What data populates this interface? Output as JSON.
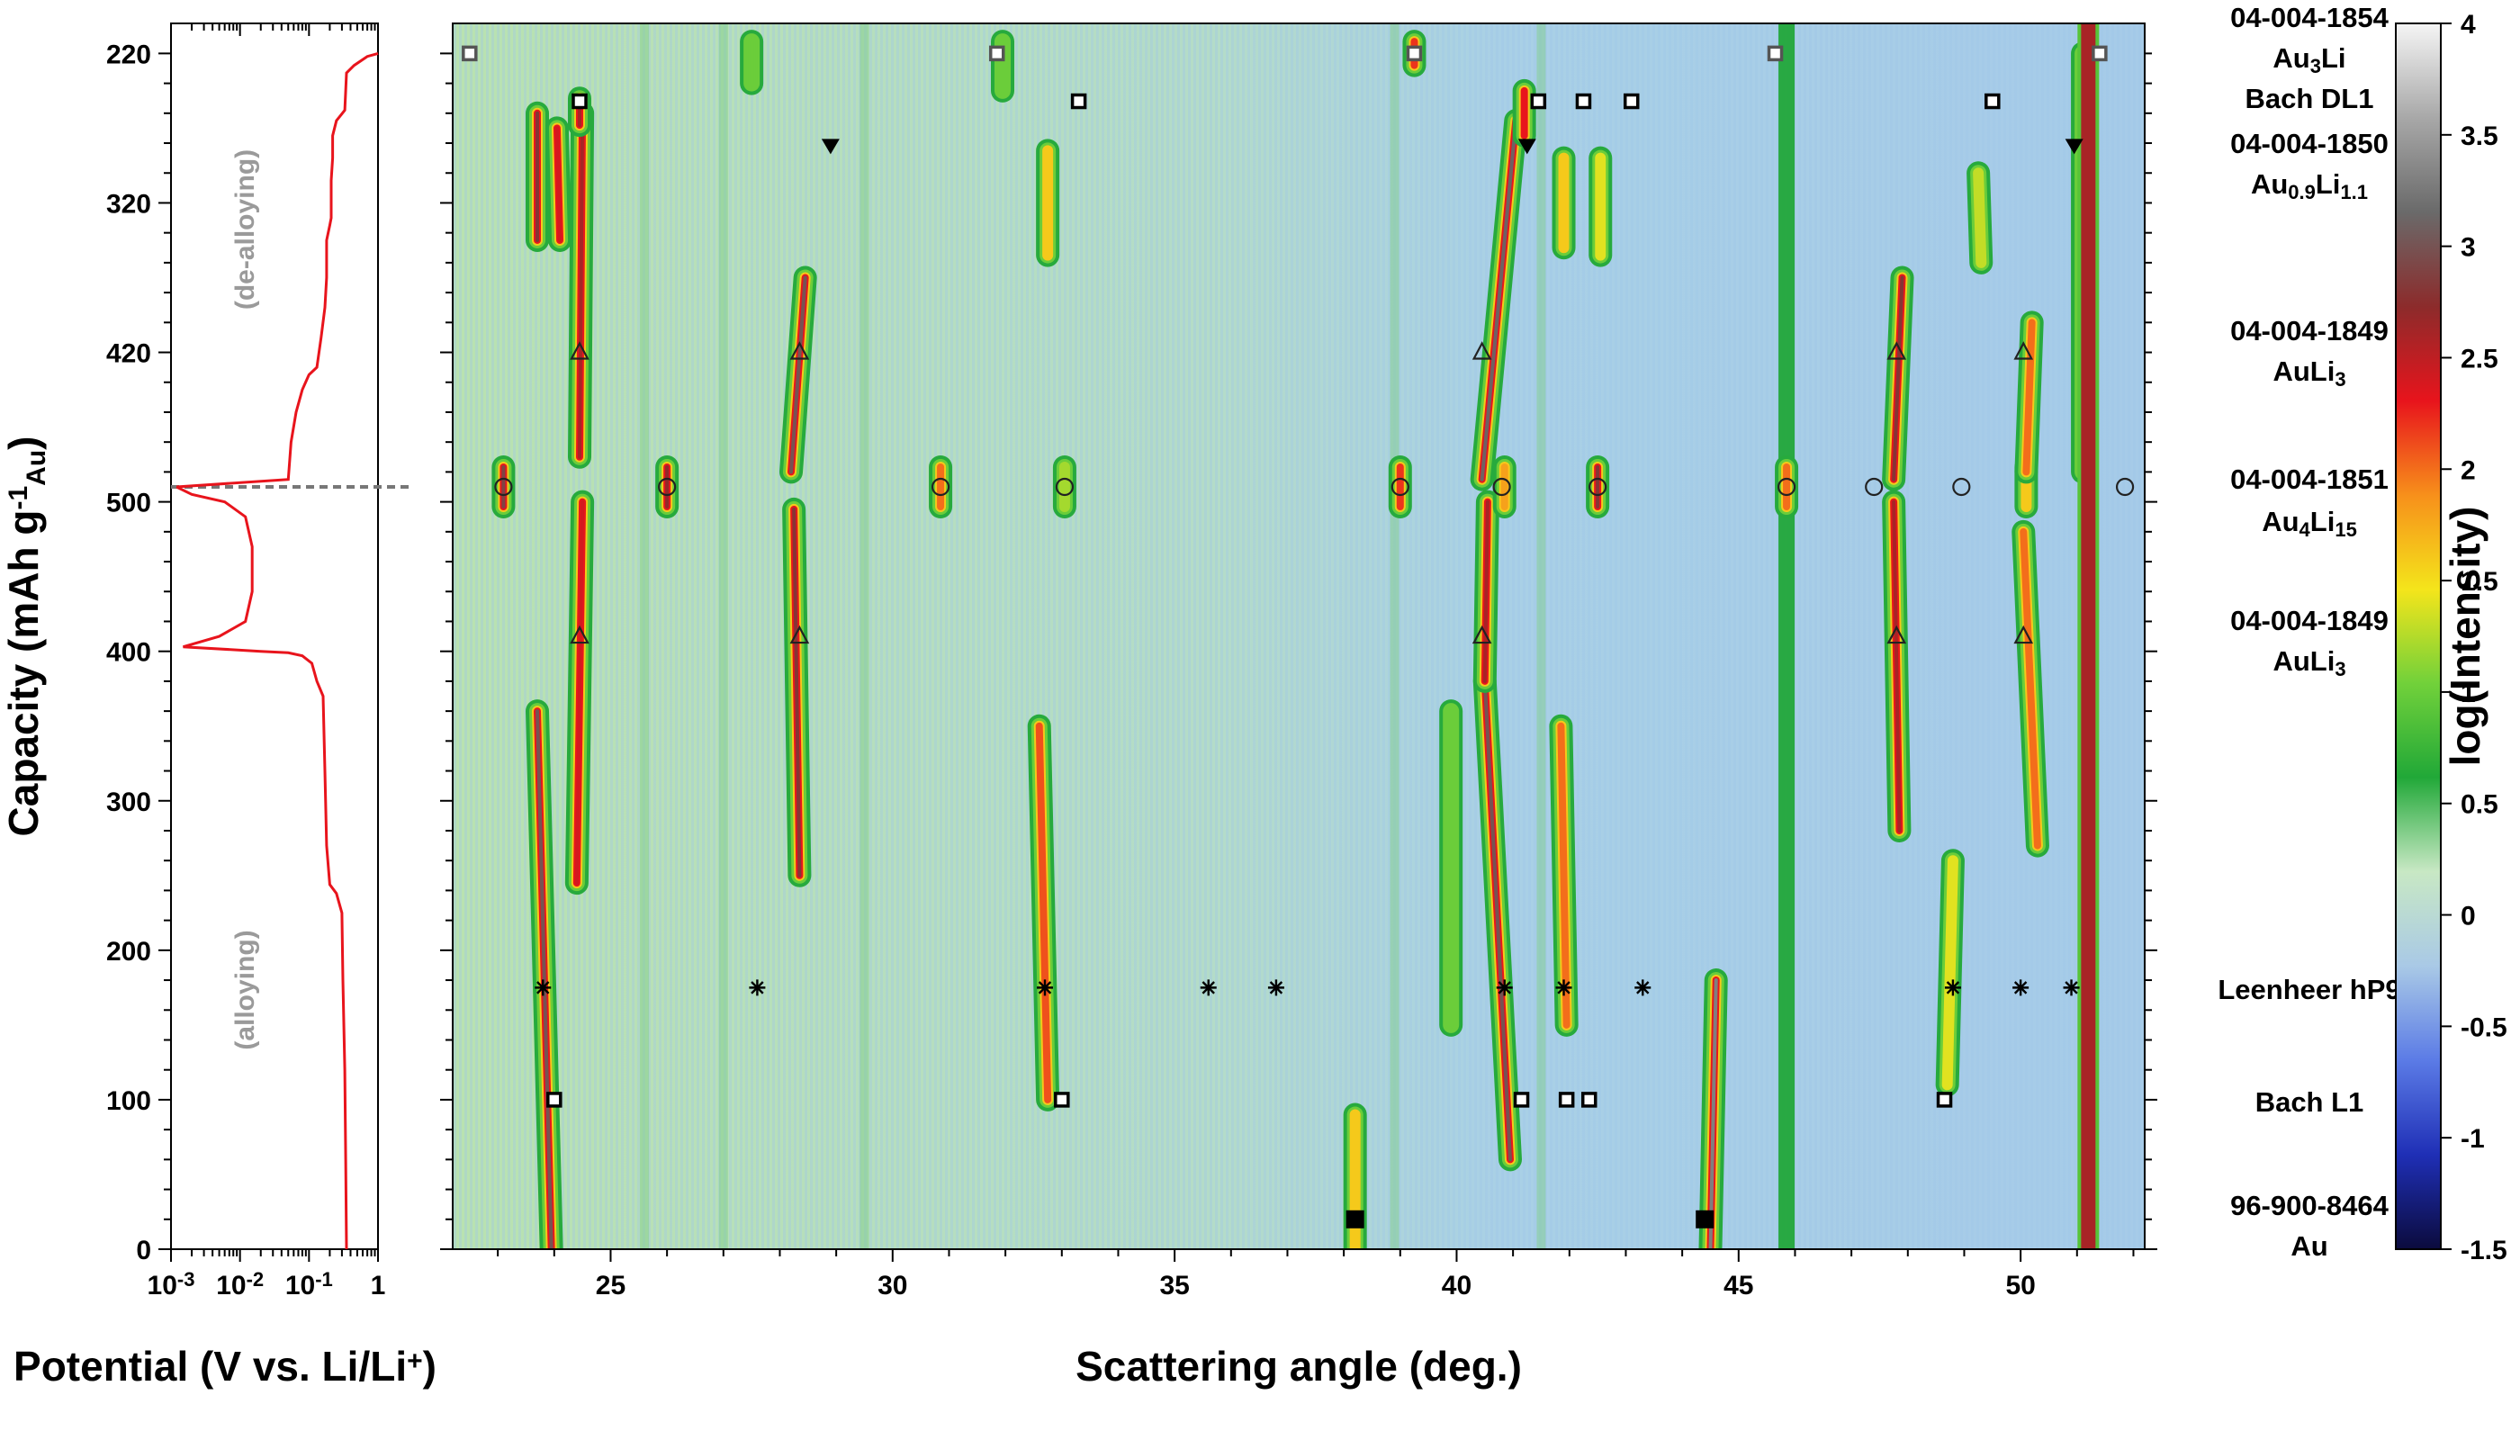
{
  "chart_data": [
    {
      "type": "line",
      "panel": "potential-capacity",
      "xlabel": "Potential (V vs. Li/Li",
      "xlabel_sup": "+",
      "xlabel_tail": ")",
      "ylabel": "Capacity (mAh g",
      "ylabel_sup": "-1",
      "ylabel_sub": "Au",
      "ylabel_tail": ")",
      "x_scale": "log",
      "xlim": [
        0.001,
        1
      ],
      "x_ticks": [
        {
          "value": 0.001,
          "base": "10",
          "exp": "-3"
        },
        {
          "value": 0.01,
          "base": "10",
          "exp": "-2"
        },
        {
          "value": 0.1,
          "base": "10",
          "exp": "-1"
        },
        {
          "value": 1,
          "base": "1",
          "exp": "0"
        }
      ],
      "y_ticks": [
        {
          "label": "0",
          "capacity": 0,
          "branch": "alloying"
        },
        {
          "label": "100",
          "capacity": 100,
          "branch": "alloying"
        },
        {
          "label": "200",
          "capacity": 200,
          "branch": "alloying"
        },
        {
          "label": "300",
          "capacity": 300,
          "branch": "alloying"
        },
        {
          "label": "400",
          "capacity": 400,
          "branch": "alloying"
        },
        {
          "label": "500",
          "capacity": 500,
          "branch": "alloying"
        },
        {
          "label": "420",
          "capacity": 420,
          "branch": "de-alloying"
        },
        {
          "label": "320",
          "capacity": 320,
          "branch": "de-alloying"
        },
        {
          "label": "220",
          "capacity": 220,
          "branch": "de-alloying"
        }
      ],
      "turning_point_capacity": 510,
      "region_labels": [
        "(alloying)",
        "(de-alloying)"
      ],
      "line_color": "#e8141c",
      "series": [
        {
          "branch": "alloying",
          "points": [
            [
              0.35,
              0
            ],
            [
              0.34,
              60
            ],
            [
              0.33,
              120
            ],
            [
              0.31,
              180
            ],
            [
              0.3,
              225
            ],
            [
              0.25,
              238
            ],
            [
              0.2,
              244
            ],
            [
              0.18,
              270
            ],
            [
              0.17,
              320
            ],
            [
              0.16,
              370
            ],
            [
              0.13,
              380
            ],
            [
              0.11,
              392
            ],
            [
              0.08,
              397
            ],
            [
              0.05,
              399
            ],
            [
              0.02,
              400
            ],
            [
              0.0015,
              403
            ],
            [
              0.005,
              410
            ],
            [
              0.012,
              420
            ],
            [
              0.015,
              440
            ],
            [
              0.015,
              470
            ],
            [
              0.012,
              490
            ],
            [
              0.006,
              500
            ],
            [
              0.002,
              505
            ],
            [
              0.0012,
              510
            ]
          ]
        },
        {
          "branch": "de-alloying",
          "points": [
            [
              0.0012,
              510
            ],
            [
              0.05,
              505
            ],
            [
              0.055,
              480
            ],
            [
              0.065,
              460
            ],
            [
              0.08,
              445
            ],
            [
              0.1,
              435
            ],
            [
              0.13,
              430
            ],
            [
              0.15,
              410
            ],
            [
              0.17,
              390
            ],
            [
              0.18,
              370
            ],
            [
              0.18,
              345
            ],
            [
              0.2,
              335
            ],
            [
              0.21,
              330
            ],
            [
              0.21,
              305
            ],
            [
              0.22,
              290
            ],
            [
              0.22,
              275
            ],
            [
              0.25,
              265
            ],
            [
              0.33,
              258
            ],
            [
              0.34,
              245
            ],
            [
              0.35,
              233
            ],
            [
              0.45,
              228
            ],
            [
              0.7,
              222
            ],
            [
              1.0,
              220
            ]
          ]
        }
      ]
    },
    {
      "type": "heatmap",
      "panel": "diffraction-map",
      "xlabel": "Scattering angle (deg.)",
      "xlim": [
        22.2,
        52.2
      ],
      "x_ticks": [
        25,
        30,
        35,
        40,
        45,
        50
      ],
      "colorbar": {
        "label": "log(Intensity)",
        "range": [
          -1.5,
          4
        ],
        "ticks": [
          "4",
          "3.5",
          "3",
          "2.5",
          "2",
          "1.5",
          "1",
          "0.5",
          "0",
          "-0.5",
          "-1",
          "-1.5"
        ],
        "colors": [
          "#0b0b3d",
          "#1f2fb6",
          "#5b7be6",
          "#a9c9e6",
          "#c8e8c4",
          "#21a838",
          "#72d13a",
          "#f4e51b",
          "#f7901b",
          "#e8141c",
          "#8c2b2b",
          "#6a6a6a",
          "#a8a8a8",
          "#f5f5f5"
        ]
      },
      "background_value": 0,
      "background_band_angle": 45.85,
      "phases": [
        {
          "label": "04-004-1854",
          "formula": [
            [
              "Au"
            ],
            [
              "3",
              "sub"
            ],
            [
              "Li"
            ]
          ],
          "capacity": 220,
          "branch": "de-alloying",
          "marker": "open-square-gray",
          "angles": [
            22.5,
            31.85,
            39.25,
            45.65,
            51.4
          ]
        },
        {
          "label": "Bach DL1",
          "formula": [],
          "capacity": 252,
          "branch": "de-alloying",
          "marker": "open-square",
          "angles": [
            24.45,
            33.3,
            41.45,
            42.25,
            43.1,
            49.5
          ]
        },
        {
          "label": "04-004-1850",
          "formula": [
            [
              "Au"
            ],
            [
              "0.9",
              "sub"
            ],
            [
              "Li"
            ],
            [
              "1.1",
              "sub"
            ]
          ],
          "capacity": 282,
          "branch": "de-alloying",
          "marker": "filled-down-triangle",
          "angles": [
            28.9,
            41.25,
            50.95
          ]
        },
        {
          "label": "04-004-1849",
          "formula": [
            [
              "AuLi"
            ],
            [
              "3",
              "sub"
            ]
          ],
          "capacity": 420,
          "branch": "de-alloying",
          "marker": "open-triangle",
          "angles": [
            24.45,
            28.35,
            40.45,
            47.8,
            50.05
          ]
        },
        {
          "label": "04-004-1851",
          "formula": [
            [
              "Au"
            ],
            [
              "4",
              "sub"
            ],
            [
              "Li"
            ],
            [
              "15",
              "sub"
            ]
          ],
          "capacity": 510,
          "branch": "turn",
          "marker": "open-circle",
          "angles": [
            23.1,
            26.0,
            30.85,
            33.05,
            39.0,
            40.8,
            42.5,
            45.85,
            47.4,
            48.95,
            51.85
          ]
        },
        {
          "label": "04-004-1849",
          "formula": [
            [
              "AuLi"
            ],
            [
              "3",
              "sub"
            ]
          ],
          "capacity": 410,
          "branch": "alloying",
          "marker": "open-triangle",
          "angles": [
            24.45,
            28.35,
            40.45,
            47.8,
            50.05
          ]
        },
        {
          "label": "Leenheer hP9",
          "formula": [],
          "capacity": 175,
          "branch": "alloying",
          "marker": "asterisk",
          "angles": [
            23.8,
            27.6,
            32.7,
            35.6,
            36.8,
            40.85,
            41.9,
            43.3,
            48.8,
            50.0,
            50.9
          ]
        },
        {
          "label": "Bach L1",
          "formula": [],
          "capacity": 100,
          "branch": "alloying",
          "marker": "open-square",
          "angles": [
            24.0,
            33.0,
            41.15,
            41.95,
            42.35,
            48.65
          ]
        },
        {
          "label": "96-900-8464",
          "formula": [
            [
              "Au"
            ]
          ],
          "capacity": 20,
          "branch": "alloying",
          "marker": "filled-square",
          "angles": [
            38.2,
            44.4
          ]
        }
      ],
      "traces": [
        {
          "branch": "alloying",
          "c0": 0,
          "c1": 360,
          "a0": 23.95,
          "a1": 23.7,
          "peak": 3.0
        },
        {
          "branch": "alloying",
          "c0": 245,
          "c1": 500,
          "a0": 24.4,
          "a1": 24.5,
          "peak": 2.4
        },
        {
          "branch": "alloying",
          "c0": 250,
          "c1": 495,
          "a0": 28.35,
          "a1": 28.25,
          "peak": 2.8
        },
        {
          "branch": "alloying",
          "c0": 100,
          "c1": 350,
          "a0": 32.75,
          "a1": 32.6,
          "peak": 2.1
        },
        {
          "branch": "alloying",
          "c0": 0,
          "c1": 90,
          "a0": 38.2,
          "a1": 38.2,
          "peak": 1.6
        },
        {
          "branch": "alloying",
          "c0": 0,
          "c1": 180,
          "a0": 44.5,
          "a1": 44.6,
          "peak": 3.3
        },
        {
          "branch": "alloying",
          "c0": 60,
          "c1": 380,
          "a0": 40.95,
          "a1": 40.5,
          "peak": 3.0
        },
        {
          "branch": "alloying",
          "c0": 380,
          "c1": 500,
          "a0": 40.5,
          "a1": 40.55,
          "peak": 2.6
        },
        {
          "branch": "alloying",
          "c0": 150,
          "c1": 350,
          "a0": 41.95,
          "a1": 41.85,
          "peak": 2.0
        },
        {
          "branch": "alloying",
          "c0": 110,
          "c1": 260,
          "a0": 48.7,
          "a1": 48.8,
          "peak": 1.4
        },
        {
          "branch": "alloying",
          "c0": 280,
          "c1": 500,
          "a0": 47.85,
          "a1": 47.75,
          "peak": 2.6
        },
        {
          "branch": "alloying",
          "c0": 270,
          "c1": 480,
          "a0": 50.3,
          "a1": 50.05,
          "peak": 2.0
        },
        {
          "branch": "alloying",
          "c0": 150,
          "c1": 360,
          "a0": 39.9,
          "a1": 39.9,
          "peak": 1.0
        },
        {
          "branch": "turn",
          "c0": 497,
          "c1": 524,
          "a0": 23.1,
          "a1": 23.1,
          "peak": 2.9
        },
        {
          "branch": "turn",
          "c0": 497,
          "c1": 524,
          "a0": 26.0,
          "a1": 26.0,
          "peak": 2.7
        },
        {
          "branch": "turn",
          "c0": 497,
          "c1": 524,
          "a0": 30.85,
          "a1": 30.85,
          "peak": 2.0
        },
        {
          "branch": "turn",
          "c0": 497,
          "c1": 524,
          "a0": 33.05,
          "a1": 33.05,
          "peak": 1.2
        },
        {
          "branch": "turn",
          "c0": 497,
          "c1": 524,
          "a0": 39.0,
          "a1": 39.0,
          "peak": 2.2
        },
        {
          "branch": "turn",
          "c0": 497,
          "c1": 524,
          "a0": 40.85,
          "a1": 40.85,
          "peak": 1.8
        },
        {
          "branch": "turn",
          "c0": 497,
          "c1": 524,
          "a0": 42.5,
          "a1": 42.5,
          "peak": 2.8
        },
        {
          "branch": "turn",
          "c0": 497,
          "c1": 524,
          "a0": 45.85,
          "a1": 45.85,
          "peak": 2.0
        },
        {
          "branch": "turn",
          "c0": 497,
          "c1": 524,
          "a0": 50.1,
          "a1": 50.1,
          "peak": 1.6
        },
        {
          "branch": "de-alloying",
          "c0": 260,
          "c1": 490,
          "a0": 24.5,
          "a1": 24.45,
          "peak": 2.6
        },
        {
          "branch": "de-alloying",
          "c0": 260,
          "c1": 345,
          "a0": 23.7,
          "a1": 23.7,
          "peak": 2.8
        },
        {
          "branch": "de-alloying",
          "c0": 270,
          "c1": 345,
          "a0": 24.05,
          "a1": 24.1,
          "peak": 2.4
        },
        {
          "branch": "de-alloying",
          "c0": 370,
          "c1": 500,
          "a0": 28.45,
          "a1": 28.2,
          "peak": 3.0
        },
        {
          "branch": "de-alloying",
          "c0": 285,
          "c1": 355,
          "a0": 32.75,
          "a1": 32.75,
          "peak": 1.6
        },
        {
          "branch": "de-alloying",
          "c0": 265,
          "c1": 505,
          "a0": 41.05,
          "a1": 40.45,
          "peak": 3.1
        },
        {
          "branch": "de-alloying",
          "c0": 290,
          "c1": 350,
          "a0": 41.9,
          "a1": 41.9,
          "peak": 1.6
        },
        {
          "branch": "de-alloying",
          "c0": 290,
          "c1": 355,
          "a0": 42.55,
          "a1": 42.55,
          "peak": 1.4
        },
        {
          "branch": "de-alloying",
          "c0": 370,
          "c1": 505,
          "a0": 47.9,
          "a1": 47.75,
          "peak": 2.8
        },
        {
          "branch": "de-alloying",
          "c0": 300,
          "c1": 360,
          "a0": 49.25,
          "a1": 49.3,
          "peak": 1.3
        },
        {
          "branch": "de-alloying",
          "c0": 400,
          "c1": 500,
          "a0": 50.2,
          "a1": 50.1,
          "peak": 2.0
        },
        {
          "branch": "de-alloying",
          "c0": 250,
          "c1": 268,
          "a0": 24.45,
          "a1": 24.45,
          "peak": 2.6
        },
        {
          "branch": "de-alloying",
          "c0": 212,
          "c1": 228,
          "a0": 39.25,
          "a1": 39.25,
          "peak": 2.2
        },
        {
          "branch": "de-alloying",
          "c0": 212,
          "c1": 240,
          "a0": 27.5,
          "a1": 27.5,
          "peak": 1.0
        },
        {
          "branch": "de-alloying",
          "c0": 212,
          "c1": 245,
          "a0": 31.95,
          "a1": 31.95,
          "peak": 1.0
        },
        {
          "branch": "de-alloying",
          "c0": 245,
          "c1": 275,
          "a0": 41.2,
          "a1": 41.2,
          "peak": 2.3
        },
        {
          "branch": "de-alloying",
          "c0": 220,
          "c1": 500,
          "a0": 51.1,
          "a1": 51.1,
          "peak": 1.0
        }
      ],
      "strong_line": {
        "angle": 51.2,
        "value": 2.6
      }
    }
  ]
}
